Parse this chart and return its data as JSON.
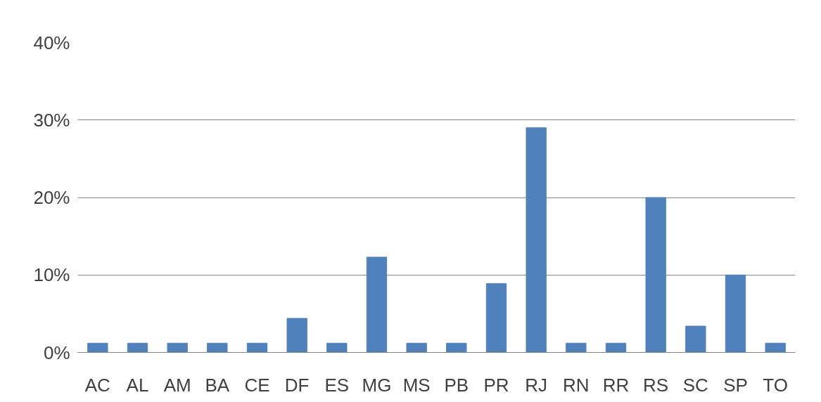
{
  "chart_data": {
    "type": "bar",
    "categories": [
      "AC",
      "AL",
      "AM",
      "BA",
      "CE",
      "DF",
      "ES",
      "MG",
      "MS",
      "PB",
      "PR",
      "RJ",
      "RN",
      "RR",
      "RS",
      "SC",
      "SP",
      "TO"
    ],
    "values": [
      1.2,
      1.2,
      1.2,
      1.2,
      1.2,
      4.4,
      1.2,
      12.3,
      1.2,
      1.2,
      8.9,
      29,
      1.2,
      1.2,
      20,
      3.4,
      10,
      1.2
    ],
    "color": "#4f81bd",
    "ylim": [
      0,
      40
    ],
    "yticks": [
      {
        "value": 0,
        "label": "0%"
      },
      {
        "value": 10,
        "label": "10%"
      },
      {
        "value": 20,
        "label": "20%"
      },
      {
        "value": 30,
        "label": "30%"
      },
      {
        "value": 40,
        "label": "40%"
      }
    ],
    "grid": "y"
  }
}
